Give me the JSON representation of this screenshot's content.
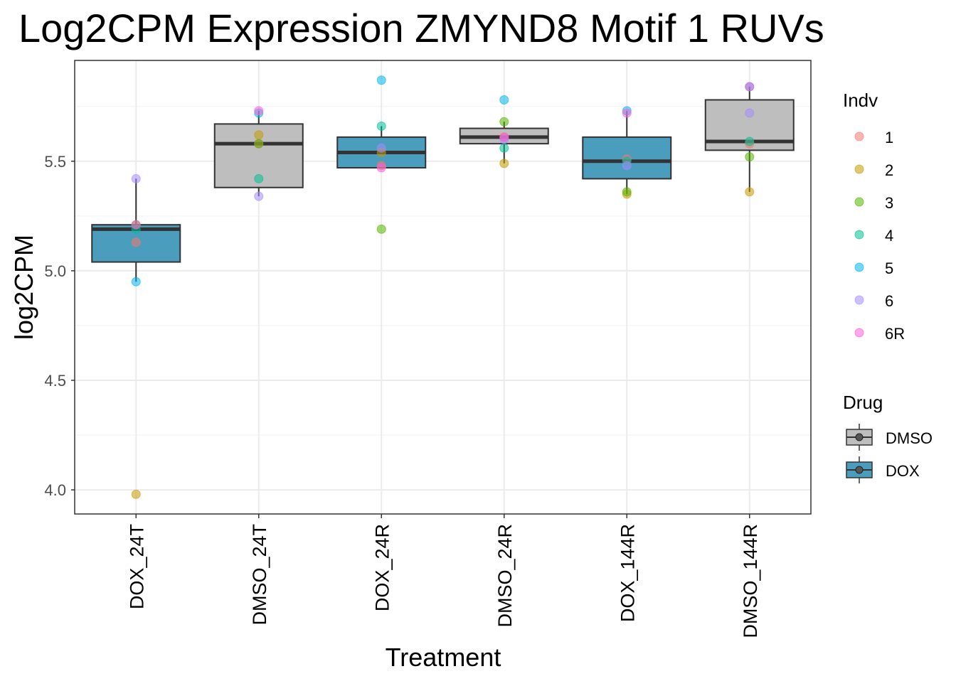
{
  "chart_data": {
    "type": "boxplot",
    "title": "Log2CPM Expression ZMYND8 Motif 1 RUVs",
    "xlabel": "Treatment",
    "ylabel": "log2CPM",
    "ylim": [
      3.89,
      5.96
    ],
    "yticks": [
      4.0,
      4.5,
      5.0,
      5.5
    ],
    "ytick_labels": [
      "4.0",
      "4.5",
      "5.0",
      "5.5"
    ],
    "grid": true,
    "legend_position": "right",
    "categories": [
      "DOX_24T",
      "DMSO_24T",
      "DOX_24R",
      "DMSO_24R",
      "DOX_144R",
      "DMSO_144R"
    ],
    "drug": [
      "DOX",
      "DMSO",
      "DOX",
      "DMSO",
      "DOX",
      "DMSO"
    ],
    "boxes": [
      {
        "q1": 5.04,
        "median": 5.19,
        "q3": 5.21,
        "whisker_low": 4.95,
        "whisker_high": 5.42
      },
      {
        "q1": 5.38,
        "median": 5.58,
        "q3": 5.67,
        "whisker_low": 5.34,
        "whisker_high": 5.73
      },
      {
        "q1": 5.47,
        "median": 5.54,
        "q3": 5.61,
        "whisker_low": 5.47,
        "whisker_high": 5.66
      },
      {
        "q1": 5.58,
        "median": 5.61,
        "q3": 5.65,
        "whisker_low": 5.49,
        "whisker_high": 5.68
      },
      {
        "q1": 5.42,
        "median": 5.5,
        "q3": 5.61,
        "whisker_low": 5.35,
        "whisker_high": 5.73
      },
      {
        "q1": 5.55,
        "median": 5.59,
        "q3": 5.78,
        "whisker_low": 5.36,
        "whisker_high": 5.84
      }
    ],
    "points": {
      "1": [
        5.13,
        5.58,
        5.48,
        5.61,
        5.51,
        5.58
      ],
      "2": [
        3.98,
        5.62,
        5.54,
        5.49,
        5.35,
        5.36
      ],
      "3": [
        5.21,
        5.58,
        5.19,
        5.68,
        5.36,
        5.52
      ],
      "4": [
        5.19,
        5.42,
        5.66,
        5.56,
        5.5,
        5.59
      ],
      "5": [
        4.95,
        5.72,
        5.87,
        5.78,
        5.73,
        5.84
      ],
      "6": [
        5.42,
        5.34,
        5.56,
        5.6,
        5.48,
        5.72
      ],
      "6R": [
        5.21,
        5.73,
        5.47,
        5.61,
        5.72,
        5.84
      ]
    },
    "legend_indv": {
      "title": "Indv",
      "entries": [
        "1",
        "2",
        "3",
        "4",
        "5",
        "6",
        "6R"
      ],
      "colors": [
        "#F8766D",
        "#C49A00",
        "#53B400",
        "#00C094",
        "#00B6EB",
        "#A58AFF",
        "#FB61D7"
      ]
    },
    "legend_drug": {
      "title": "Drug",
      "entries": [
        "DMSO",
        "DOX"
      ],
      "colors": [
        "#BEBEBE",
        "#4A9DBD"
      ]
    }
  }
}
